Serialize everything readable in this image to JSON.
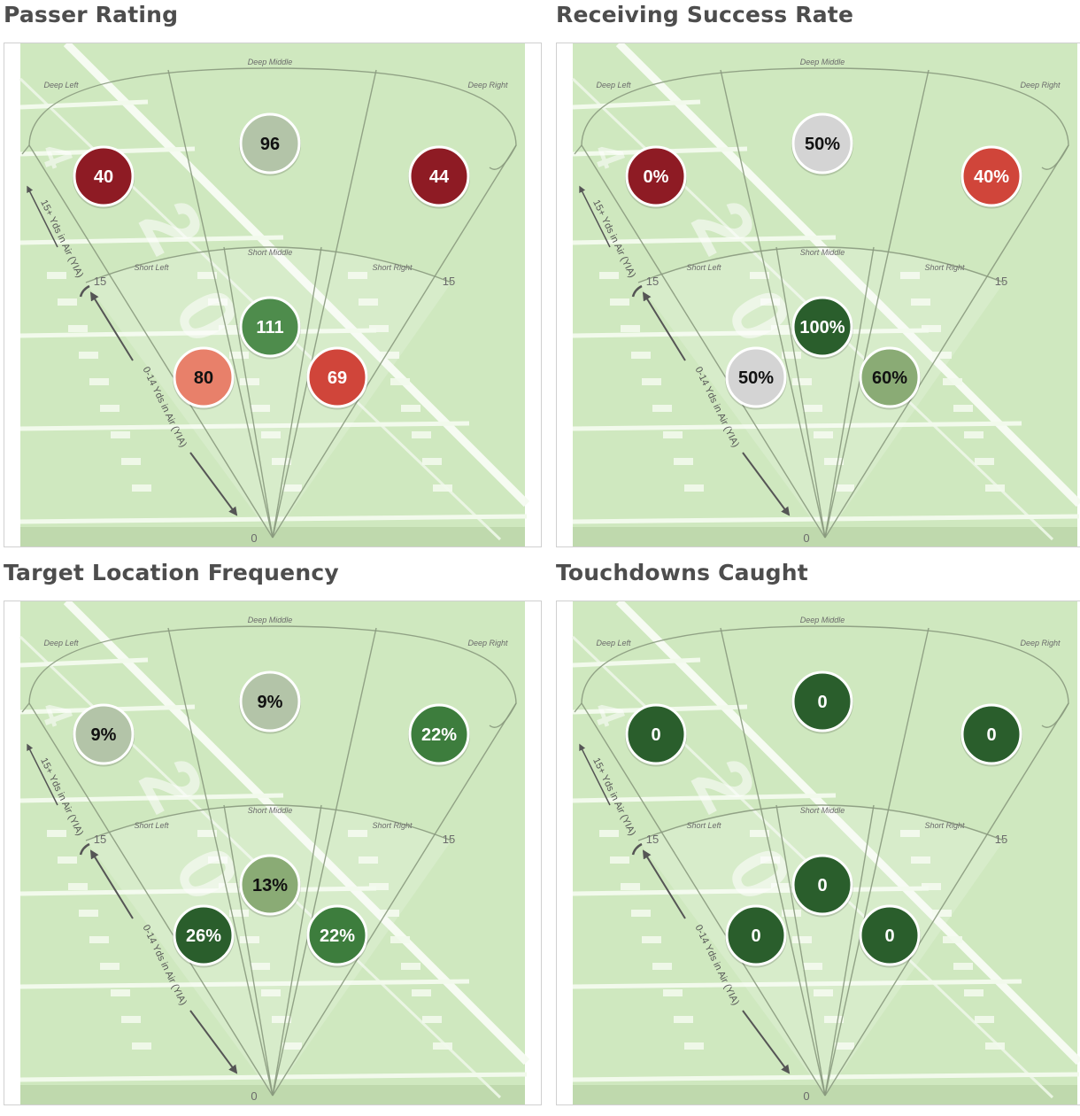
{
  "field": {
    "zone_labels": {
      "deep_left": "Deep Left",
      "deep_middle": "Deep Middle",
      "deep_right": "Deep Right",
      "short_left": "Short Left",
      "short_middle": "Short Middle",
      "short_right": "Short Right"
    },
    "yard_labels": {
      "zero": "0",
      "fifteen": "15"
    },
    "range_labels": {
      "short": "0-14 Yds in Air (YIA)",
      "deep": "15+ Yds in Air (YIA)"
    },
    "colors": {
      "turf": "#cfe8bf",
      "dark_red": "#8e1b24",
      "red": "#d0453a",
      "salmon": "#e8806a",
      "gray": "#d4d4d4",
      "sage": "#b3c4a8",
      "light_green": "#8aab75",
      "green": "#3d7d3d",
      "mid_green": "#4e8c4c",
      "dark_green": "#2a5e2c"
    }
  },
  "chart_data": [
    {
      "type": "heatmap",
      "title": "Passer Rating",
      "zones": [
        {
          "zone": "Deep Left",
          "label": "40",
          "value": 40,
          "color": "#8e1b24"
        },
        {
          "zone": "Deep Middle",
          "label": "96",
          "value": 96,
          "color": "#b3c4a8"
        },
        {
          "zone": "Deep Right",
          "label": "44",
          "value": 44,
          "color": "#8e1b24"
        },
        {
          "zone": "Short Left",
          "label": "80",
          "value": 80,
          "color": "#e8806a"
        },
        {
          "zone": "Short Middle",
          "label": "111",
          "value": 111,
          "color": "#4e8c4c"
        },
        {
          "zone": "Short Right",
          "label": "69",
          "value": 69,
          "color": "#d0453a"
        }
      ]
    },
    {
      "type": "heatmap",
      "title": "Receiving Success Rate",
      "zones": [
        {
          "zone": "Deep Left",
          "label": "0%",
          "value": 0,
          "color": "#8e1b24"
        },
        {
          "zone": "Deep Middle",
          "label": "50%",
          "value": 50,
          "color": "#d4d4d4"
        },
        {
          "zone": "Deep Right",
          "label": "40%",
          "value": 40,
          "color": "#d0453a"
        },
        {
          "zone": "Short Left",
          "label": "50%",
          "value": 50,
          "color": "#d4d4d4"
        },
        {
          "zone": "Short Middle",
          "label": "100%",
          "value": 100,
          "color": "#2a5e2c"
        },
        {
          "zone": "Short Right",
          "label": "60%",
          "value": 60,
          "color": "#8aab75"
        }
      ]
    },
    {
      "type": "heatmap",
      "title": "Target Location Frequency",
      "zones": [
        {
          "zone": "Deep Left",
          "label": "9%",
          "value": 9,
          "color": "#b3c4a8"
        },
        {
          "zone": "Deep Middle",
          "label": "9%",
          "value": 9,
          "color": "#b3c4a8"
        },
        {
          "zone": "Deep Right",
          "label": "22%",
          "value": 22,
          "color": "#3d7d3d"
        },
        {
          "zone": "Short Left",
          "label": "26%",
          "value": 26,
          "color": "#2a5e2c"
        },
        {
          "zone": "Short Middle",
          "label": "13%",
          "value": 13,
          "color": "#8aab75"
        },
        {
          "zone": "Short Right",
          "label": "22%",
          "value": 22,
          "color": "#3d7d3d"
        }
      ]
    },
    {
      "type": "heatmap",
      "title": "Touchdowns Caught",
      "zones": [
        {
          "zone": "Deep Left",
          "label": "0",
          "value": 0,
          "color": "#2a5e2c"
        },
        {
          "zone": "Deep Middle",
          "label": "0",
          "value": 0,
          "color": "#2a5e2c"
        },
        {
          "zone": "Deep Right",
          "label": "0",
          "value": 0,
          "color": "#2a5e2c"
        },
        {
          "zone": "Short Left",
          "label": "0",
          "value": 0,
          "color": "#2a5e2c"
        },
        {
          "zone": "Short Middle",
          "label": "0",
          "value": 0,
          "color": "#2a5e2c"
        },
        {
          "zone": "Short Right",
          "label": "0",
          "value": 0,
          "color": "#2a5e2c"
        }
      ]
    }
  ]
}
